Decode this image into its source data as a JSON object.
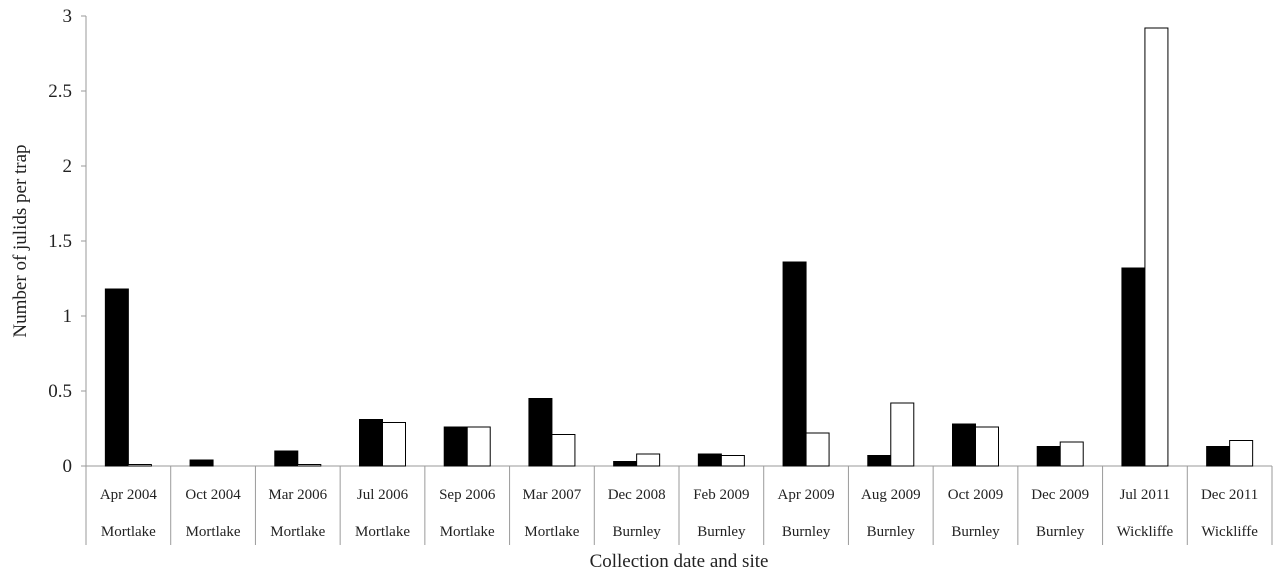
{
  "chart_data": {
    "type": "bar",
    "title": "",
    "xlabel": "Collection date and site",
    "ylabel": "Number of julids per trap",
    "ylim": [
      0,
      3
    ],
    "yticks": [
      "0",
      "0.5",
      "1",
      "1.5",
      "2",
      "2.5",
      "3"
    ],
    "grid": false,
    "legend": "none",
    "categories": [
      {
        "date": "Apr 2004",
        "site": "Mortlake"
      },
      {
        "date": "Oct 2004",
        "site": "Mortlake"
      },
      {
        "date": "Mar 2006",
        "site": "Mortlake"
      },
      {
        "date": "Jul 2006",
        "site": "Mortlake"
      },
      {
        "date": "Sep 2006",
        "site": "Mortlake"
      },
      {
        "date": "Mar 2007",
        "site": "Mortlake"
      },
      {
        "date": "Dec 2008",
        "site": "Burnley"
      },
      {
        "date": "Feb 2009",
        "site": "Burnley"
      },
      {
        "date": "Apr 2009",
        "site": "Burnley"
      },
      {
        "date": "Aug 2009",
        "site": "Burnley"
      },
      {
        "date": "Oct 2009",
        "site": "Burnley"
      },
      {
        "date": "Dec 2009",
        "site": "Burnley"
      },
      {
        "date": "Jul 2011",
        "site": "Wickliffe"
      },
      {
        "date": "Dec 2011",
        "site": "Wickliffe"
      }
    ],
    "series": [
      {
        "fill": "#000000",
        "values": [
          1.18,
          0.04,
          0.1,
          0.31,
          0.26,
          0.45,
          0.03,
          0.08,
          1.36,
          0.07,
          0.28,
          0.13,
          1.32,
          0.13
        ]
      },
      {
        "fill": "#ffffff",
        "values": [
          0.01,
          0.0,
          0.01,
          0.29,
          0.26,
          0.21,
          0.08,
          0.07,
          0.22,
          0.42,
          0.26,
          0.16,
          2.92,
          0.17
        ]
      }
    ]
  }
}
